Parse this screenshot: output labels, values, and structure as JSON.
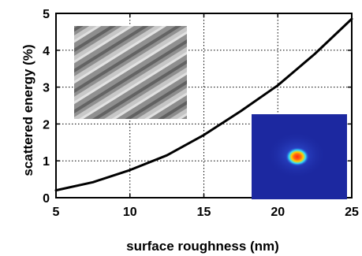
{
  "chart_data": {
    "type": "line",
    "title": "",
    "xlabel": "surface roughness (nm)",
    "ylabel": "scattered energy (%)",
    "xlim": [
      5,
      25
    ],
    "ylim": [
      0,
      5
    ],
    "x_ticks": [
      5,
      10,
      15,
      20,
      25
    ],
    "y_ticks": [
      0,
      1,
      2,
      3,
      4,
      5
    ],
    "x_tick_labels": [
      "5",
      "10",
      "15",
      "20",
      "25"
    ],
    "y_tick_labels": [
      "0",
      "1",
      "2",
      "3",
      "4",
      "5"
    ],
    "grid": true,
    "grid_style": "dotted",
    "legend": "none",
    "line_color": "#000000",
    "series": [
      {
        "x": [
          5,
          7.5,
          10,
          12.5,
          15,
          17.5,
          20,
          22.5,
          25
        ],
        "y": [
          0.2,
          0.42,
          0.75,
          1.15,
          1.7,
          2.35,
          3.05,
          3.9,
          4.85
        ]
      }
    ],
    "insets": [
      {
        "name": "surface-topography-image",
        "position": "top-left",
        "colors": [
          "#4a4a4a",
          "#bdbdbd"
        ]
      },
      {
        "name": "scattered-light-pattern-image",
        "position": "bottom-right",
        "colors": [
          "#1f2aa8",
          "#3f8fff",
          "#ffd000",
          "#e02010"
        ]
      }
    ]
  }
}
